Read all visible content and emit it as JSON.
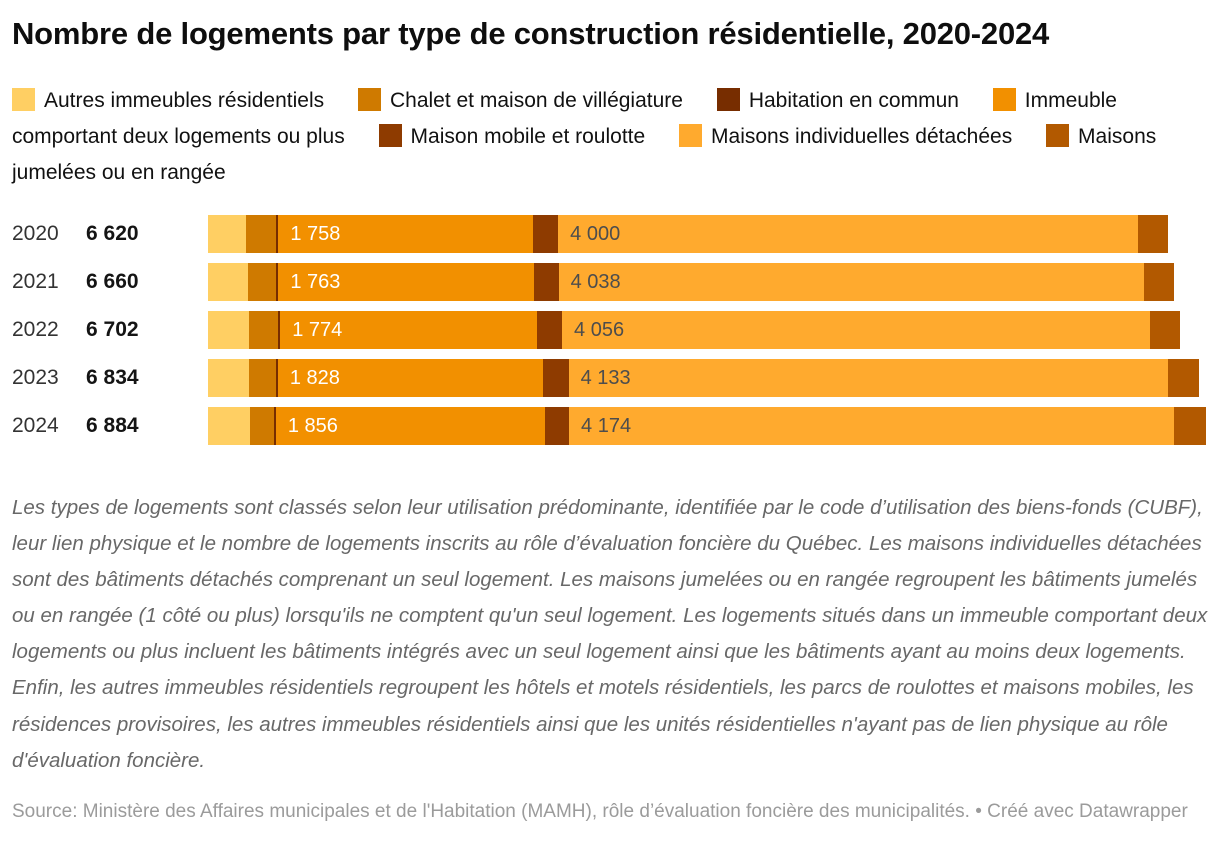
{
  "title": "Nombre de logements par type de construction résidentielle, 2020-2024",
  "legend": {
    "items": [
      {
        "label": "Autres immeubles résidentiels",
        "color": "#FFCF63"
      },
      {
        "label": "Chalet et maison de villégiature",
        "color": "#CF7A00"
      },
      {
        "label": "Habitation en commun",
        "color": "#772D00"
      },
      {
        "label": "Immeuble comportant deux logements ou plus",
        "color": "#F29000"
      },
      {
        "label": "Maison mobile et roulotte",
        "color": "#8E3B00"
      },
      {
        "label": "Maisons individuelles détachées",
        "color": "#FFAA2E"
      },
      {
        "label": "Maisons jumelées ou en rangée",
        "color": "#B25900"
      }
    ]
  },
  "chart_data": {
    "type": "bar",
    "stacked": true,
    "orientation": "horizontal",
    "title": "Nombre de logements par type de construction résidentielle, 2020-2024",
    "categories": [
      "2020",
      "2021",
      "2022",
      "2023",
      "2024"
    ],
    "totals": [
      6620,
      6660,
      6702,
      6834,
      6884
    ],
    "total_labels": [
      "6 620",
      "6 660",
      "6 702",
      "6 834",
      "6 884"
    ],
    "xlim": [
      0,
      6900
    ],
    "grid": false,
    "legend_position": "top",
    "series": [
      {
        "name": "Autres immeubles résidentiels",
        "color": "#FFCF63",
        "values": [
          265,
          275,
          285,
          285,
          288
        ],
        "estimated": true
      },
      {
        "name": "Chalet et maison de villégiature",
        "color": "#CF7A00",
        "values": [
          205,
          195,
          198,
          182,
          168
        ],
        "estimated": true
      },
      {
        "name": "Habitation en commun",
        "color": "#772D00",
        "values": [
          15,
          15,
          15,
          15,
          12
        ],
        "estimated": true
      },
      {
        "name": "Immeuble comportant deux logements ou plus",
        "color": "#F29000",
        "values": [
          1758,
          1763,
          1774,
          1828,
          1856
        ],
        "labels": [
          "1 758",
          "1 763",
          "1 774",
          "1 828",
          "1 856"
        ],
        "label_color": "#ffffff"
      },
      {
        "name": "Maison mobile et roulotte",
        "color": "#8E3B00",
        "values": [
          172,
          170,
          170,
          177,
          166
        ],
        "estimated": true
      },
      {
        "name": "Maisons individuelles détachées",
        "color": "#FFAA2E",
        "values": [
          4000,
          4038,
          4056,
          4133,
          4174
        ],
        "labels": [
          "4 000",
          "4 038",
          "4 056",
          "4 133",
          "4 174"
        ],
        "label_color": "#4d4d4d"
      },
      {
        "name": "Maisons jumelées ou en rangée",
        "color": "#B25900",
        "values": [
          205,
          204,
          204,
          214,
          220
        ],
        "estimated": true
      }
    ]
  },
  "notes": "Les types de logements sont classés selon leur utilisation prédominante, identifiée par le code d’utilisation des biens-fonds (CUBF), leur lien physique et le nombre de logements inscrits au rôle d’évaluation foncière du Québec. Les maisons individuelles détachées sont des bâtiments détachés comprenant un seul logement. Les maisons jumelées ou en rangée regroupent les bâtiments jumelés ou en rangée (1 côté ou plus) lorsqu'ils ne comptent qu'un seul logement. Les logements situés dans un immeuble comportant deux logements ou plus incluent les bâtiments intégrés avec un seul logement ainsi que les bâtiments ayant au moins deux logements. Enfin, les autres immeubles résidentiels regroupent les hôtels et motels résidentiels, les parcs de roulottes et maisons mobiles, les résidences provisoires, les autres immeubles résidentiels ainsi que les unités résidentielles n'ayant pas de lien physique au rôle d'évaluation foncière.",
  "source": "Source: Ministère des Affaires municipales et de l'Habitation (MAMH), rôle d’évaluation foncière des municipalités. • Créé avec Datawrapper"
}
